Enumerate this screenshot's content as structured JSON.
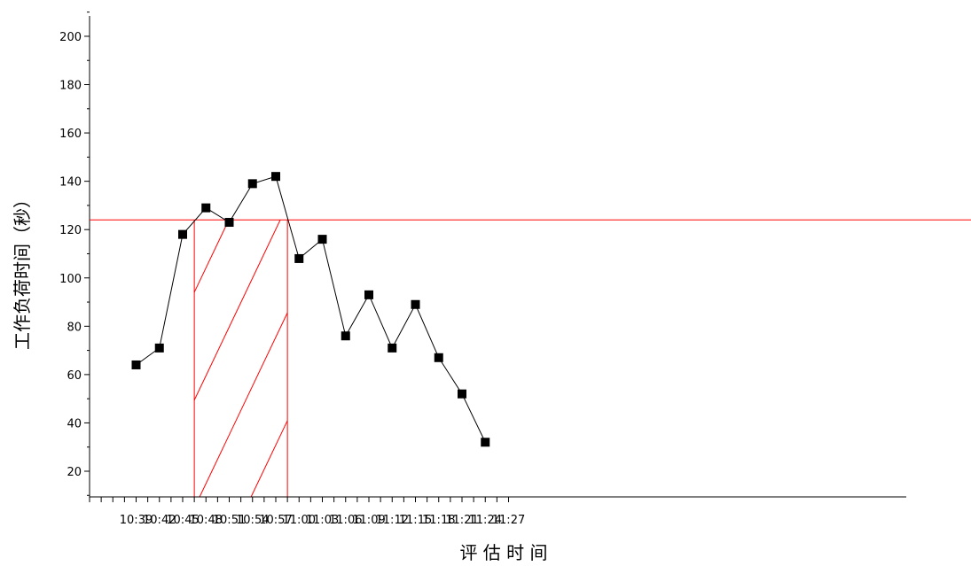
{
  "chart_data": {
    "type": "line",
    "title": "",
    "xlabel": "评 估 时 间",
    "ylabel": "工作负荷时间（秒）",
    "ylim": [
      10,
      210
    ],
    "y_ticks": [
      20,
      40,
      60,
      80,
      100,
      120,
      140,
      160,
      180,
      200
    ],
    "x_tick_labels": [
      "10:39",
      "10:42",
      "10:45",
      "10:48",
      "10:51",
      "10:54",
      "10:57",
      "11:00",
      "11:03",
      "11:06",
      "11:09",
      "11:12",
      "11:15",
      "11:18",
      "11:21",
      "11:24",
      "11:27"
    ],
    "series": [
      {
        "x": [
          "10:39",
          "10:42",
          "10:45",
          "10:48",
          "10:51",
          "10:54",
          "10:57",
          "11:00",
          "11:03",
          "11:06",
          "11:09",
          "11:12",
          "11:15",
          "11:18",
          "11:21",
          "11:24"
        ],
        "values": [
          64,
          71,
          118,
          129,
          123,
          139,
          142,
          108,
          116,
          76,
          93,
          71,
          89,
          67,
          52,
          32
        ]
      }
    ],
    "threshold": 124,
    "shaded_region": {
      "x_start": "10:46:30",
      "x_end": "10:58:30"
    },
    "colors": {
      "series": "#000000",
      "threshold": "#ff0000",
      "hatch": "#ff0000"
    },
    "grid": false,
    "legend": "none"
  }
}
